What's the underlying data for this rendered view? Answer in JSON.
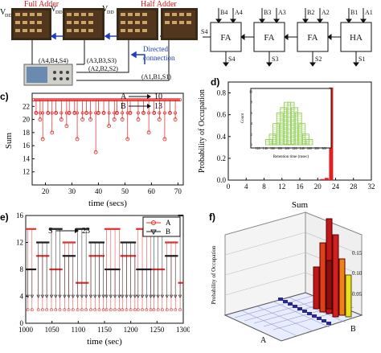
{
  "panel_a": {
    "label_full_adder": "Full Adder",
    "label_half_adder": "Half Adder",
    "label_vdd1": "V",
    "label_vdd1_sub": "DD",
    "label_vdd2": "V",
    "label_vdd2_sub": "DD",
    "label_vdd3": "V",
    "label_vdd3_sub": "DD",
    "label_out1": "(A",
    "label_out1_full": "(A4,B4,S4)",
    "label_out2_full": "(A3,B3,S3)",
    "label_out3_full": "(A2,B2,S2)",
    "label_out4_full": "(A1,B1,S1)",
    "directed_connection": "Directed connection",
    "colors": {
      "board": "#3a2a18",
      "title": "#d7141d",
      "arrow_blue": "#1f3fbf",
      "annotation_blue": "#1a40c0"
    }
  },
  "panel_b": {
    "blocks": [
      "FA",
      "FA",
      "FA",
      "HA"
    ],
    "inputs_top": [
      "B4",
      "A4",
      "B3",
      "A3",
      "B2",
      "A2",
      "B1",
      "A1"
    ],
    "outputs": [
      "S4",
      "S3",
      "S2",
      "S1"
    ],
    "carry_out": "S4"
  },
  "panel_c": {
    "panel_label": "c)",
    "legend": [
      {
        "text": "A",
        "value": "10"
      },
      {
        "text": "B",
        "value": "13"
      }
    ],
    "chart_data": {
      "type": "scatter",
      "xlabel": "time (secs)",
      "ylabel": "Sum",
      "xlim": [
        15,
        72
      ],
      "ylim": [
        10,
        24
      ],
      "xticks": [
        20,
        30,
        40,
        50,
        60,
        70
      ],
      "yticks": [
        12,
        14,
        16,
        18,
        20,
        22
      ],
      "series": [
        {
          "values_baseline": 23,
          "dips": [
            [
              16.5,
              21
            ],
            [
              18,
              20
            ],
            [
              19,
              17
            ],
            [
              21,
              21
            ],
            [
              22.5,
              18
            ],
            [
              24,
              21
            ],
            [
              26,
              20
            ],
            [
              28,
              19
            ],
            [
              29,
              21
            ],
            [
              31,
              21
            ],
            [
              32,
              17
            ],
            [
              34,
              20
            ],
            [
              35.5,
              21
            ],
            [
              37,
              20
            ],
            [
              39,
              15
            ],
            [
              40,
              21
            ],
            [
              42,
              21
            ],
            [
              44,
              19
            ],
            [
              46,
              20
            ],
            [
              47,
              21
            ],
            [
              49,
              20
            ],
            [
              51,
              17
            ],
            [
              52,
              21
            ],
            [
              55,
              20
            ],
            [
              57,
              21
            ],
            [
              59,
              18
            ],
            [
              61,
              21
            ],
            [
              63,
              20
            ],
            [
              65,
              17
            ],
            [
              67,
              21
            ],
            [
              69,
              20
            ]
          ]
        }
      ],
      "color": "#e02020"
    }
  },
  "panel_d": {
    "panel_label": "d)",
    "chart_data": {
      "type": "bar",
      "xlabel": "Sum",
      "ylabel": "Probability of Occupation",
      "xlim": [
        0,
        32
      ],
      "ylim": [
        0,
        0.9
      ],
      "xticks": [
        0,
        4,
        8,
        12,
        16,
        20,
        24,
        28,
        32
      ],
      "yticks": [
        0.0,
        0.2,
        0.4,
        0.6,
        0.8
      ],
      "bars": [
        {
          "x": 21,
          "y": 0.01
        },
        {
          "x": 22,
          "y": 0.02
        },
        {
          "x": 23,
          "y": 0.85
        }
      ],
      "color": "#e02020"
    },
    "inset": {
      "xlabel": "Retention time (msec)",
      "ylabel": "Count",
      "xticks": [
        "120",
        "140",
        "160",
        "180",
        "200",
        "220",
        "240",
        "260",
        "280",
        "300"
      ],
      "yticks": [
        "0",
        "2",
        "4",
        "6",
        "8",
        "10"
      ],
      "chart_data": {
        "type": "bar",
        "categories": [
          150,
          160,
          170,
          180,
          190,
          200,
          210,
          220,
          230,
          240,
          250,
          260
        ],
        "values": [
          1,
          2,
          4,
          6,
          7,
          8,
          8,
          7,
          6,
          4,
          2,
          1
        ],
        "ylim": [
          0,
          10
        ],
        "color": "#88cc44"
      }
    }
  },
  "panel_e": {
    "panel_label": "e)",
    "annotation_s": "S",
    "annotation_value": "23",
    "legend": [
      "A",
      "B"
    ],
    "chart_data": {
      "type": "line",
      "xlabel": "time (sec)",
      "xlim": [
        1000,
        1300
      ],
      "ylim": [
        0,
        16
      ],
      "xticks": [
        1000,
        1050,
        1100,
        1150,
        1200,
        1250,
        1300
      ],
      "yticks": [
        0,
        4,
        8,
        12,
        16
      ],
      "series": [
        {
          "name": "A",
          "color": "#e03030",
          "levels": [
            [
              1000,
              14
            ],
            [
              1020,
              10
            ],
            [
              1045,
              8
            ],
            [
              1070,
              12
            ],
            [
              1095,
              6
            ],
            [
              1120,
              10
            ],
            [
              1150,
              14
            ],
            [
              1180,
              10
            ],
            [
              1210,
              14
            ],
            [
              1240,
              8
            ],
            [
              1265,
              12
            ],
            [
              1290,
              6
            ]
          ]
        },
        {
          "name": "B",
          "color": "#222222",
          "levels": [
            [
              1000,
              8
            ],
            [
              1020,
              12
            ],
            [
              1045,
              14
            ],
            [
              1070,
              10
            ],
            [
              1095,
              14
            ],
            [
              1120,
              12
            ],
            [
              1150,
              8
            ],
            [
              1180,
              12
            ],
            [
              1210,
              8
            ],
            [
              1240,
              14
            ],
            [
              1265,
              10
            ],
            [
              1290,
              16
            ]
          ]
        }
      ]
    }
  },
  "panel_f": {
    "panel_label": "f)",
    "axis_a": "A",
    "axis_b": "B",
    "zlabel": "Probability of Occupation",
    "zticks": [
      "0.05",
      "0.10",
      "0.15"
    ],
    "colors": {
      "bars_hot": "#c01818",
      "bars_warm": "#e04018",
      "bars_yellow": "#e8e020",
      "bars_orange": "#f08018",
      "floor": "#2a2a8a"
    }
  }
}
